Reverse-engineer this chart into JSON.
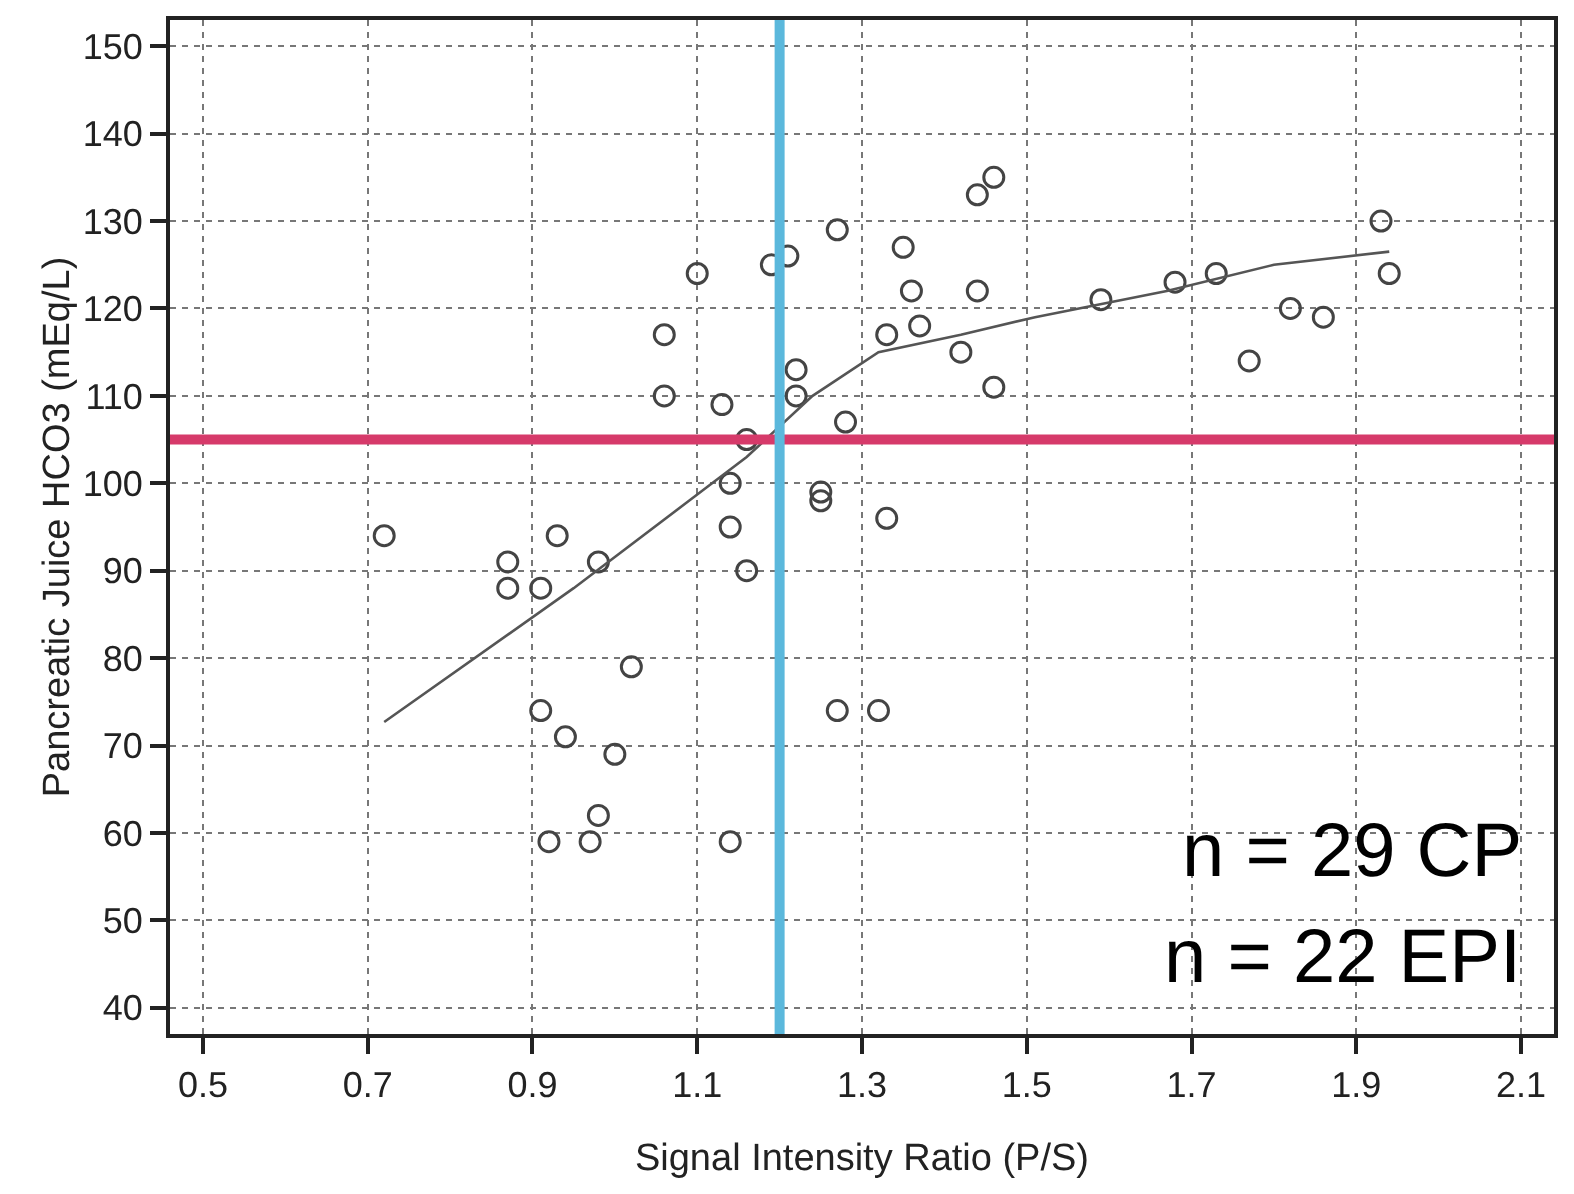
{
  "chart_data": {
    "type": "scatter",
    "xlabel": "Signal Intensity Ratio (P/S)",
    "ylabel": "Pancreatic Juice HCO3 (mEq/L)",
    "xlim": [
      0.46,
      2.14
    ],
    "ylim": [
      37,
      153
    ],
    "xticks": [
      0.5,
      0.7,
      0.9,
      1.1,
      1.3,
      1.5,
      1.7,
      1.9,
      2.1
    ],
    "yticks": [
      40,
      50,
      60,
      70,
      80,
      90,
      100,
      110,
      120,
      130,
      140,
      150
    ],
    "grid": true,
    "series": [
      {
        "marker": "circle",
        "color": "#444444",
        "x": [
          0.72,
          0.87,
          0.87,
          0.91,
          0.93,
          0.98,
          0.91,
          0.94,
          1.0,
          1.02,
          0.92,
          0.97,
          0.98,
          1.14,
          1.1,
          1.06,
          1.06,
          1.13,
          1.16,
          1.14,
          1.14,
          1.16,
          1.19,
          1.21,
          1.22,
          1.22,
          1.27,
          1.25,
          1.25,
          1.28,
          1.27,
          1.32,
          1.33,
          1.33,
          1.35,
          1.36,
          1.37,
          1.42,
          1.44,
          1.44,
          1.46,
          1.46,
          1.59,
          1.68,
          1.73,
          1.77,
          1.82,
          1.86,
          1.93,
          1.94
        ],
        "values": [
          94,
          91,
          88,
          88,
          94,
          91,
          74,
          71,
          69,
          79,
          59,
          59,
          62,
          59,
          124,
          117,
          110,
          109,
          105,
          100,
          95,
          90,
          125,
          126,
          113,
          110,
          129,
          98,
          99,
          107,
          74,
          74,
          96,
          117,
          127,
          122,
          118,
          115,
          122,
          133,
          135,
          111,
          121,
          123,
          124,
          114,
          120,
          119,
          130,
          124
        ]
      },
      {
        "type": "line",
        "marker": "none",
        "line_style": "solid",
        "color": "#555555",
        "x": [
          0.72,
          0.95,
          1.09,
          1.16,
          1.24,
          1.32,
          1.42,
          1.51,
          1.67,
          1.8,
          1.94
        ],
        "values": [
          72.7,
          88,
          98,
          103,
          110,
          115,
          117,
          119,
          122,
          125,
          126.5
        ]
      }
    ],
    "ref_lines": [
      {
        "axis": "y",
        "value": 105,
        "color": "#d63a6a",
        "line_style": "solid"
      },
      {
        "axis": "x",
        "value": 1.2,
        "color": "#5bb8dc",
        "line_style": "solid"
      }
    ],
    "annotations": [
      "n = 29 CP",
      "n = 22 EPI"
    ]
  }
}
